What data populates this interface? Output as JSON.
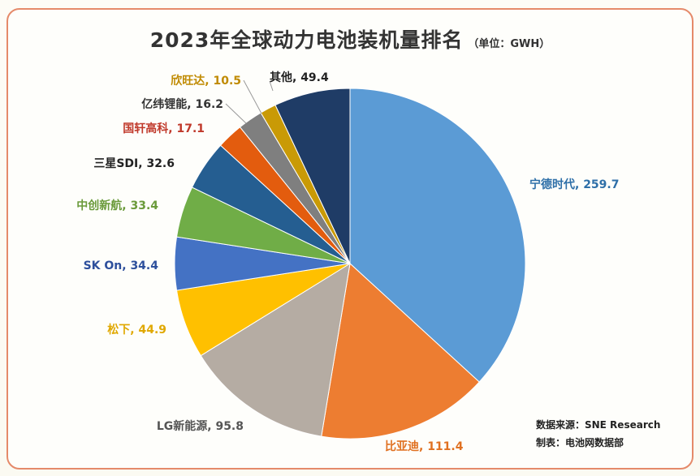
{
  "title": "2023年全球动力电池装机量排名",
  "unit": "（单位：GWH）",
  "source_text": "数据来源：SNE Research",
  "maker_text": "制表：电池网数据部",
  "chart_data": {
    "type": "pie",
    "title": "2023年全球动力电池装机量排名",
    "unit": "GWH",
    "slices": [
      {
        "label": "宁德时代",
        "value": 259.7,
        "value_text": "259.7",
        "color": "#5b9bd5",
        "label_color": "#2e6fa8"
      },
      {
        "label": "比亚迪",
        "value": 111.4,
        "value_text": "111.4",
        "color": "#ed7d31",
        "label_color": "#e07020"
      },
      {
        "label": "LG新能源",
        "value": 95.8,
        "value_text": "95.8",
        "color": "#b5aca3",
        "label_color": "#555555"
      },
      {
        "label": "松下",
        "value": 44.9,
        "value_text": "44.9",
        "color": "#ffc000",
        "label_color": "#e0a800"
      },
      {
        "label": "SK On",
        "value": 34.4,
        "value_text": "34.4",
        "color": "#4472c4",
        "label_color": "#2d4f9c"
      },
      {
        "label": "中创新航",
        "value": 33.4,
        "value_text": "33.4",
        "color": "#70ad47",
        "label_color": "#6a9a3a"
      },
      {
        "label": "三星SDI",
        "value": 32.6,
        "value_text": "32.6",
        "color": "#255e91",
        "label_color": "#222222"
      },
      {
        "label": "国轩高科",
        "value": 17.1,
        "value_text": "17.1",
        "color": "#e35c0e",
        "label_color": "#c0392b"
      },
      {
        "label": "亿纬锂能",
        "value": 16.2,
        "value_text": "16.2",
        "color": "#7f7f7f",
        "label_color": "#333333"
      },
      {
        "label": "欣旺达",
        "value": 10.5,
        "value_text": "10.5",
        "color": "#c99a06",
        "label_color": "#c08a00"
      },
      {
        "label": "其他",
        "value": 49.4,
        "value_text": "49.4",
        "color": "#1f3c66",
        "label_color": "#222222"
      }
    ]
  }
}
